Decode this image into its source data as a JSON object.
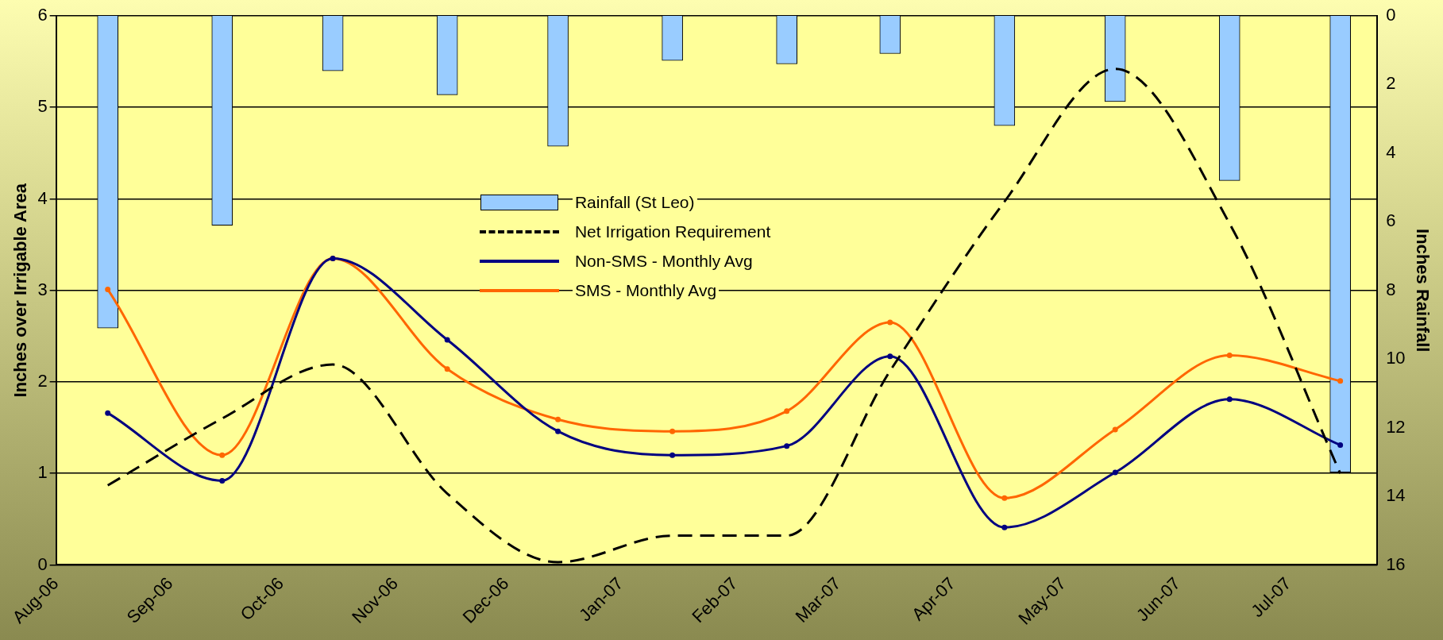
{
  "chart_data": {
    "type": "line",
    "x": [
      "2006-08-15",
      "2006-09-15",
      "2006-10-15",
      "2006-11-15",
      "2006-12-15",
      "2007-01-15",
      "2007-02-15",
      "2007-03-15",
      "2007-04-15",
      "2007-05-15",
      "2007-06-15",
      "2007-07-15"
    ],
    "xlim": [
      "2006-08-01",
      "2007-07-25"
    ],
    "xticks": [
      {
        "value": "2006-08-01",
        "label": "Aug-06"
      },
      {
        "value": "2006-09-01",
        "label": "Sep-06"
      },
      {
        "value": "2006-10-01",
        "label": "Oct-06"
      },
      {
        "value": "2006-11-01",
        "label": "Nov-06"
      },
      {
        "value": "2006-12-01",
        "label": "Dec-06"
      },
      {
        "value": "2007-01-01",
        "label": "Jan-07"
      },
      {
        "value": "2007-02-01",
        "label": "Feb-07"
      },
      {
        "value": "2007-03-01",
        "label": "Mar-07"
      },
      {
        "value": "2007-04-01",
        "label": "Apr-07"
      },
      {
        "value": "2007-05-01",
        "label": "May-07"
      },
      {
        "value": "2007-06-01",
        "label": "Jun-07"
      },
      {
        "value": "2007-07-01",
        "label": "Jul-07"
      }
    ],
    "ylim": [
      0,
      6
    ],
    "yticks": [
      0,
      1,
      2,
      3,
      4,
      5,
      6
    ],
    "y2lim": [
      16,
      0
    ],
    "y2ticks": [
      0,
      2,
      4,
      6,
      8,
      10,
      12,
      14,
      16
    ],
    "ylabel": "Inches over Irrigable Area",
    "y2label": "Inches Rainfall",
    "grid": "y",
    "legend": "center",
    "marker": "circle",
    "series": [
      {
        "name": "Rainfall (St Leo)",
        "type": "bar",
        "axis": "y2",
        "color": "#99ccff",
        "values": [
          9.1,
          6.1,
          1.6,
          2.3,
          3.8,
          1.3,
          1.4,
          1.1,
          3.2,
          2.5,
          4.8,
          13.3
        ]
      },
      {
        "name": "Net Irrigation Requirement",
        "color": "#000000",
        "line_style": "dashed",
        "marker": "none",
        "values": [
          0.87,
          1.6,
          2.19,
          0.78,
          0.03,
          0.32,
          0.32,
          2.12,
          3.97,
          5.42,
          3.73,
          1.0
        ]
      },
      {
        "name": "Non-SMS - Monthly Avg",
        "color": "#000080",
        "line_style": "solid",
        "values": [
          1.66,
          0.92,
          3.35,
          2.46,
          1.46,
          1.2,
          1.3,
          2.28,
          0.41,
          1.01,
          1.81,
          1.31
        ]
      },
      {
        "name": "SMS - Monthly Avg",
        "color": "#ff6600",
        "line_style": "solid",
        "values": [
          3.01,
          1.2,
          3.35,
          2.14,
          1.59,
          1.46,
          1.68,
          2.65,
          0.73,
          1.48,
          2.29,
          2.01
        ]
      }
    ]
  }
}
